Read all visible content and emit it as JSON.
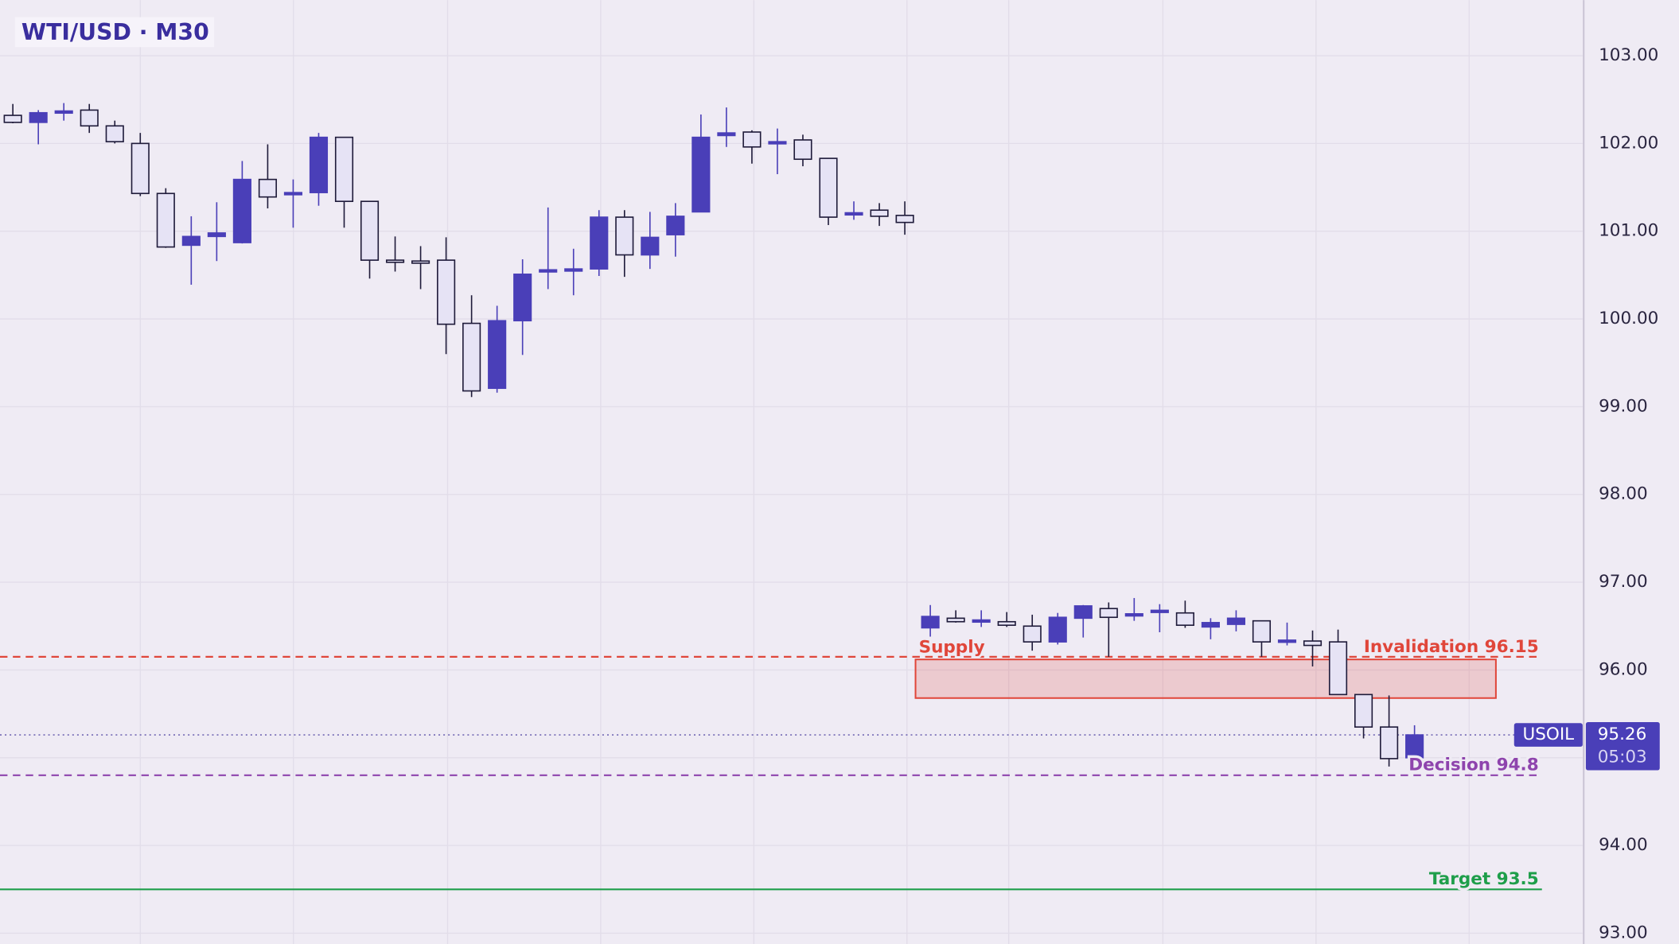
{
  "chart_data": {
    "type": "candlestick",
    "title": "WTI/USD · M30",
    "symbol": "USOIL",
    "countdown": "05:03",
    "last_price": 95.26,
    "up_color": "#4a3fb8",
    "down_color": "#e6e3f5",
    "ylim": [
      92.878,
      103.634
    ],
    "yticks": [
      {
        "value": 93,
        "label": "93.00"
      },
      {
        "value": 94,
        "label": "94.00"
      },
      {
        "value": 95,
        "label": "95.00"
      },
      {
        "value": 96,
        "label": "96.00"
      },
      {
        "value": 97,
        "label": "97.00"
      },
      {
        "value": 98,
        "label": "98.00"
      },
      {
        "value": 99,
        "label": "99.00"
      },
      {
        "value": 100,
        "label": "100.00"
      },
      {
        "value": 101,
        "label": "101.00"
      },
      {
        "value": 102,
        "label": "102.00"
      },
      {
        "value": 103,
        "label": "103.00"
      }
    ],
    "grid": true,
    "open": [
      102.32,
      102.24,
      102.36,
      102.38,
      102.2,
      102.0,
      101.43,
      100.84,
      100.94,
      100.87,
      101.59,
      101.42,
      101.44,
      102.07,
      101.34,
      100.67,
      100.66,
      100.67,
      99.95,
      99.21,
      99.98,
      100.54,
      100.55,
      100.57,
      101.16,
      100.73,
      100.96,
      101.22,
      102.09,
      102.13,
      102.0,
      102.04,
      101.83,
      101.19,
      101.24,
      101.18,
      96.48,
      96.59,
      96.55,
      96.55,
      96.5,
      96.32,
      96.59,
      96.7,
      96.62,
      96.66,
      96.65,
      96.49,
      96.52,
      96.56,
      96.33,
      96.33,
      96.32,
      95.72,
      95.35,
      95.0
    ],
    "high": [
      102.45,
      102.38,
      102.46,
      102.45,
      102.26,
      102.12,
      101.49,
      101.17,
      101.33,
      101.8,
      101.99,
      101.59,
      102.12,
      102.07,
      101.34,
      100.94,
      100.83,
      100.93,
      100.27,
      100.15,
      100.68,
      101.27,
      100.8,
      101.24,
      101.24,
      101.22,
      101.32,
      102.33,
      102.41,
      102.15,
      102.17,
      102.1,
      101.83,
      101.34,
      101.32,
      101.34,
      96.74,
      96.68,
      96.68,
      96.66,
      96.63,
      96.65,
      96.74,
      96.77,
      96.82,
      96.75,
      96.79,
      96.59,
      96.68,
      96.56,
      96.54,
      96.45,
      96.46,
      95.72,
      95.71,
      95.37
    ],
    "low": [
      102.23,
      101.99,
      102.26,
      102.12,
      102.0,
      101.4,
      100.81,
      100.39,
      100.66,
      100.86,
      101.26,
      101.04,
      101.29,
      101.04,
      100.46,
      100.54,
      100.34,
      99.6,
      99.11,
      99.16,
      99.59,
      100.34,
      100.27,
      100.49,
      100.48,
      100.57,
      100.71,
      101.22,
      101.96,
      101.77,
      101.65,
      101.74,
      101.07,
      101.13,
      101.06,
      100.96,
      96.38,
      96.54,
      96.49,
      96.49,
      96.22,
      96.29,
      96.37,
      96.15,
      96.56,
      96.43,
      96.48,
      96.35,
      96.44,
      96.15,
      96.28,
      96.04,
      95.72,
      95.22,
      94.9,
      95.0
    ],
    "close": [
      102.24,
      102.35,
      102.37,
      102.2,
      102.02,
      101.43,
      100.82,
      100.94,
      100.98,
      101.59,
      101.39,
      101.44,
      102.07,
      101.34,
      100.67,
      100.66,
      100.65,
      99.94,
      99.18,
      99.98,
      100.51,
      100.56,
      100.57,
      101.16,
      100.73,
      100.93,
      101.17,
      102.07,
      102.12,
      101.96,
      102.02,
      101.82,
      101.16,
      101.21,
      101.17,
      101.1,
      96.61,
      96.55,
      96.57,
      96.51,
      96.32,
      96.6,
      96.73,
      96.6,
      96.64,
      96.68,
      96.51,
      96.54,
      96.59,
      96.32,
      96.34,
      96.28,
      95.72,
      95.35,
      94.99,
      95.26
    ],
    "zone": {
      "label": "Supply",
      "top": 96.12,
      "bottom": 95.68,
      "color": "#e0463a"
    },
    "levels": [
      {
        "label": "Invalidation 96.15",
        "value": 96.15,
        "color": "#e0463a",
        "style": "dashed"
      },
      {
        "label": "Decision 94.8",
        "value": 94.8,
        "color": "#8e44ad",
        "style": "dashed"
      },
      {
        "label": "Target 93.5",
        "value": 93.5,
        "color": "#1e9e4a",
        "style": "solid"
      }
    ]
  }
}
